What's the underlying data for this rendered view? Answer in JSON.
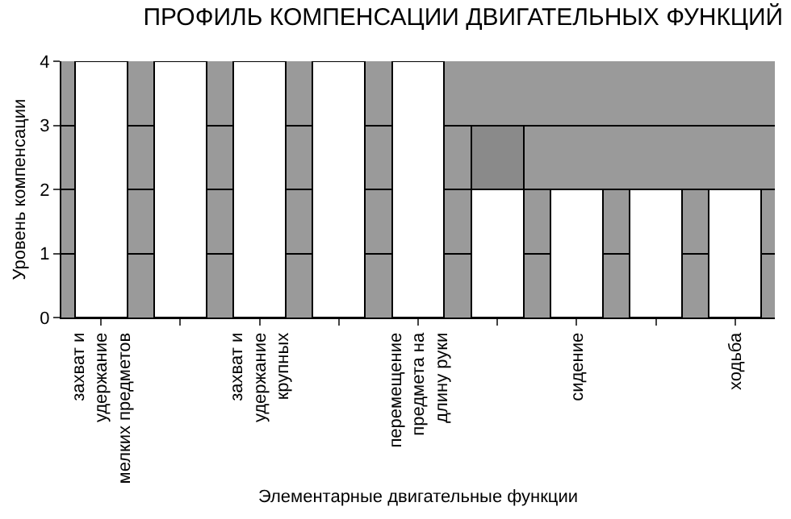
{
  "chart_data": {
    "type": "bar",
    "title": "ПРОФИЛЬ КОМПЕНСАЦИИ ДВИГАТЕЛЬНЫХ ФУНКЦИЙ",
    "xlabel": "Элементарные двигательные функции",
    "ylabel": "Уровень компенсации",
    "categories": [
      "захват и\nудержание\nмелких предметов",
      null,
      "захват и\nудержание\nкрупных",
      null,
      "перемещение\nпредмета на\nдлину руки",
      null,
      "сидение",
      null,
      "ходьба"
    ],
    "stacked": true,
    "series": [
      {
        "color": "#ffffff",
        "values": [
          4,
          4,
          4,
          4,
          4,
          2,
          2,
          2,
          2
        ]
      },
      {
        "color": "#8a8a8a",
        "values": [
          null,
          null,
          null,
          null,
          null,
          1,
          null,
          null,
          null
        ]
      }
    ],
    "ylim": [
      0,
      4
    ],
    "yticks": [
      0,
      1,
      2,
      3,
      4
    ],
    "grid": "y"
  }
}
